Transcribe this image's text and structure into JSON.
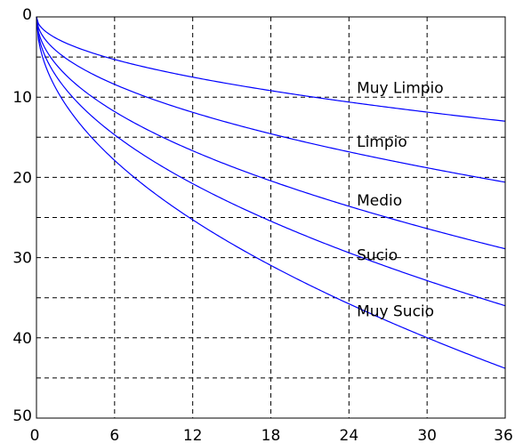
{
  "chart_data": {
    "type": "line",
    "title": "",
    "xlabel": "",
    "ylabel": "",
    "xlim": [
      0,
      36
    ],
    "ylim": [
      0,
      50
    ],
    "y_inverted": true,
    "grid": true,
    "grid_style": "dashed",
    "x_ticks": [
      "0",
      "6",
      "12",
      "18",
      "24",
      "30",
      "36"
    ],
    "y_ticks": [
      "0",
      "10",
      "20",
      "30",
      "40",
      "50"
    ],
    "line_color": "#0000ff",
    "series": [
      {
        "name": "Muy Limpio",
        "x": [
          0,
          6,
          12,
          18,
          24,
          30,
          36
        ],
        "y": [
          0,
          5.3,
          7.5,
          9.2,
          10.6,
          11.9,
          13.0
        ]
      },
      {
        "name": "Limpio",
        "x": [
          0,
          6,
          12,
          18,
          24,
          30,
          36
        ],
        "y": [
          0,
          8.4,
          11.9,
          14.6,
          16.8,
          18.8,
          20.6
        ]
      },
      {
        "name": "Medio",
        "x": [
          0,
          6,
          12,
          18,
          24,
          30,
          36
        ],
        "y": [
          0,
          11.8,
          16.7,
          20.4,
          23.6,
          26.4,
          28.9
        ]
      },
      {
        "name": "Sucio",
        "x": [
          0,
          6,
          12,
          18,
          24,
          30,
          36
        ],
        "y": [
          0,
          14.7,
          20.8,
          25.5,
          29.4,
          32.9,
          36.0
        ]
      },
      {
        "name": "Muy Sucio",
        "x": [
          0,
          6,
          12,
          18,
          24,
          30,
          36
        ],
        "y": [
          0,
          17.9,
          25.3,
          31.0,
          35.8,
          40.0,
          43.8
        ]
      }
    ],
    "annotations": [
      {
        "text": "Muy Limpio",
        "x": 24.6,
        "y": 9.5
      },
      {
        "text": "Limpio",
        "x": 24.6,
        "y": 16.2
      },
      {
        "text": "Medio",
        "x": 24.6,
        "y": 23.5
      },
      {
        "text": "Sucio",
        "x": 24.6,
        "y": 30.3
      },
      {
        "text": "Muy Sucio",
        "x": 24.6,
        "y": 37.3
      }
    ]
  }
}
